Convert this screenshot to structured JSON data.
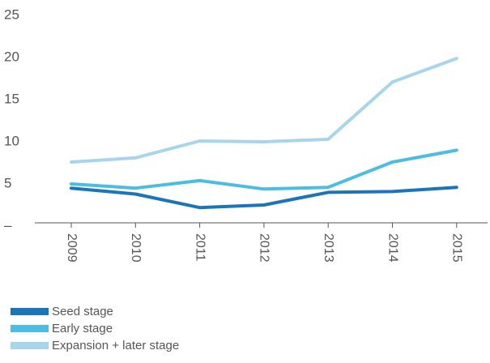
{
  "chart_data": {
    "type": "line",
    "title": "",
    "xlabel": "",
    "ylabel": "",
    "x": [
      "2009",
      "2010",
      "2011",
      "2012",
      "2013",
      "2014",
      "2015"
    ],
    "ylim": [
      0,
      25
    ],
    "yticks": [
      {
        "value": 0,
        "label": "–"
      },
      {
        "value": 5,
        "label": "5"
      },
      {
        "value": 10,
        "label": "10"
      },
      {
        "value": 15,
        "label": "15"
      },
      {
        "value": 20,
        "label": "20"
      },
      {
        "value": 25,
        "label": "25"
      }
    ],
    "grid": false,
    "legend_position": "bottom-left",
    "series": [
      {
        "name": "Expansion + later stage",
        "color": "#a7d5ec",
        "values": [
          7.5,
          8.0,
          10.0,
          9.9,
          10.2,
          17.0,
          19.8
        ]
      },
      {
        "name": "Early stage",
        "color": "#4bbde3",
        "values": [
          4.9,
          4.4,
          5.3,
          4.3,
          4.5,
          7.5,
          8.9
        ]
      },
      {
        "name": "Seed stage",
        "color": "#1c75b8",
        "values": [
          4.4,
          3.7,
          2.1,
          2.4,
          3.9,
          4.0,
          4.5
        ]
      }
    ]
  },
  "legend": [
    {
      "label": "Seed stage",
      "color": "#1c75b8"
    },
    {
      "label": "Early stage",
      "color": "#4bbde3"
    },
    {
      "label": "Expansion + later stage",
      "color": "#a7d5ec"
    }
  ]
}
